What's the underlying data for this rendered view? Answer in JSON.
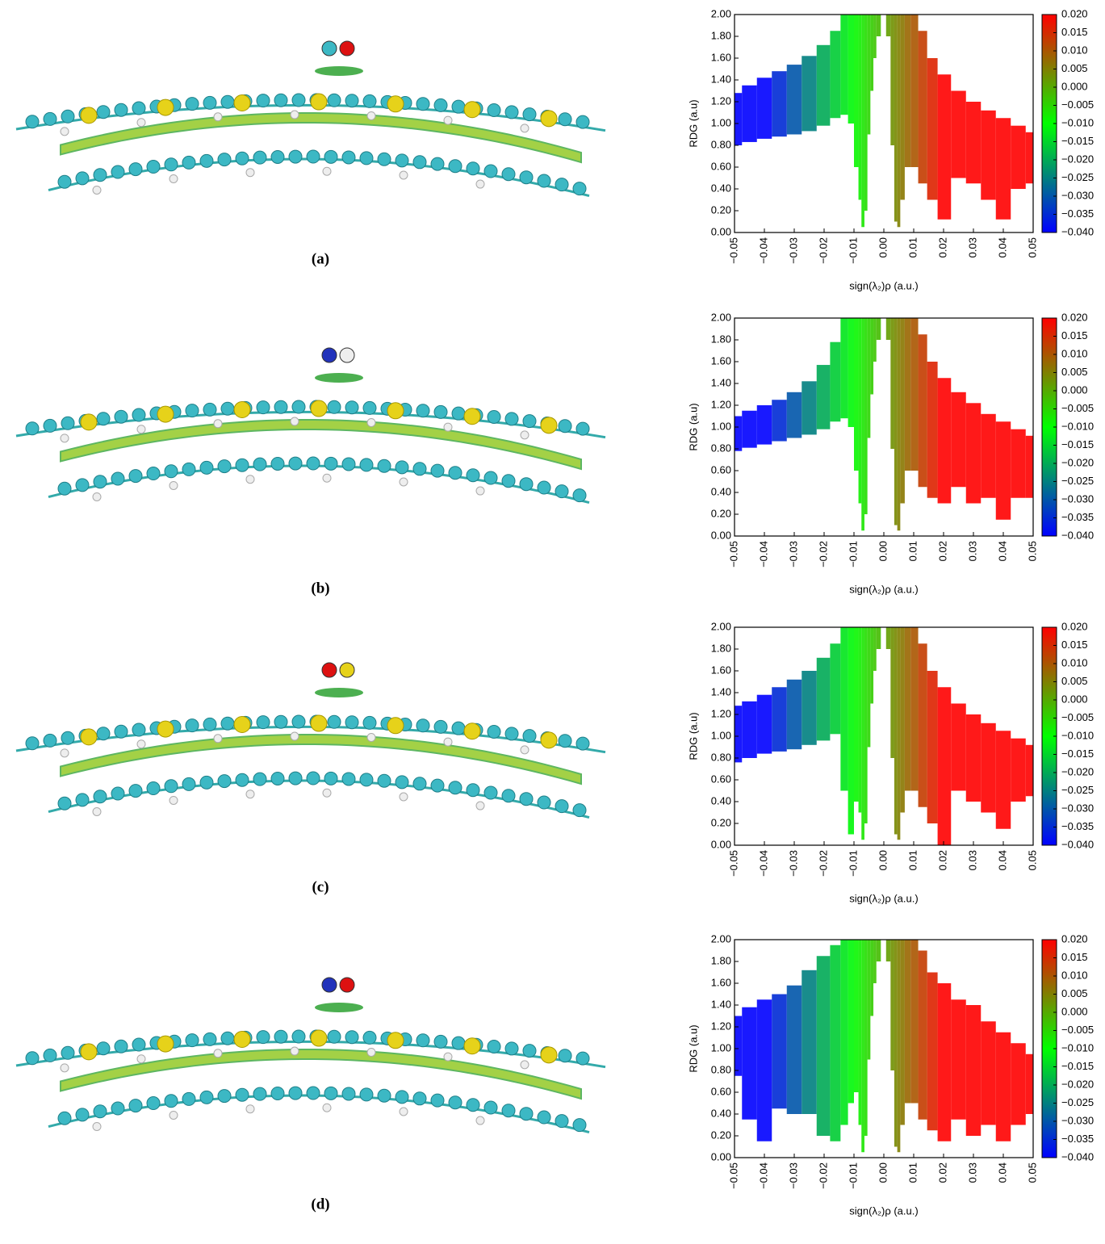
{
  "chart_data": [
    {
      "type": "scatter",
      "caption": "(a)",
      "xlabel": "sign(λ₂)ρ (a.u.)",
      "ylabel": "RDG (a.u)",
      "xlim": [
        -0.05,
        0.05
      ],
      "ylim": [
        0,
        2
      ],
      "xticks": [
        {
          "value": -0.05,
          "label": "−0.05"
        },
        {
          "value": -0.04,
          "label": "−0.04"
        },
        {
          "value": -0.03,
          "label": "−0.03"
        },
        {
          "value": -0.02,
          "label": "−0.02"
        },
        {
          "value": -0.01,
          "label": "−0.01"
        },
        {
          "value": 0,
          "label": "0.00"
        },
        0.01,
        0.02,
        0.03,
        0.04,
        0.05
      ],
      "yticks": [
        {
          "value": 0,
          "label": "0.00"
        },
        {
          "value": 0.2,
          "label": "0.20"
        },
        {
          "value": 0.4,
          "label": "0.40"
        },
        {
          "value": 0.6,
          "label": "0.60"
        },
        {
          "value": 0.8,
          "label": "0.80"
        },
        {
          "value": 1,
          "label": "1.00"
        },
        {
          "value": 1.2,
          "label": "1.20"
        },
        {
          "value": 1.4,
          "label": "1.40"
        },
        {
          "value": 1.6,
          "label": "1.60"
        },
        {
          "value": 1.8,
          "label": "1.80"
        },
        {
          "value": 2,
          "label": "2.00"
        }
      ],
      "colorbar": {
        "lim": [
          -0.04,
          0.02
        ],
        "colors": [
          "#0000ff",
          "#00ff00",
          "#ff0000"
        ],
        "ticks": [
          {
            "value": 0.02,
            "label": "0.020"
          },
          0.015,
          {
            "value": 0.01,
            "label": "0.010"
          },
          0.005,
          {
            "value": 0,
            "label": "0.000"
          },
          {
            "value": -0.005,
            "label": "−0.005"
          },
          {
            "value": -0.01,
            "label": "−0.010"
          },
          {
            "value": -0.015,
            "label": "−0.015"
          },
          {
            "value": -0.02,
            "label": "−0.020"
          },
          {
            "value": -0.025,
            "label": "−0.025"
          },
          {
            "value": -0.03,
            "label": "−0.030"
          },
          {
            "value": -0.035,
            "label": "−0.035"
          },
          {
            "value": -0.04,
            "label": "−0.040"
          }
        ]
      },
      "x": [
        -0.05,
        -0.045,
        -0.04,
        -0.035,
        -0.03,
        -0.025,
        -0.02,
        -0.016,
        -0.013,
        -0.011,
        -0.009,
        -0.008,
        -0.007,
        -0.006,
        -0.005,
        -0.004,
        -0.003,
        -0.002,
        0,
        0.0015,
        0.003,
        0.004,
        0.005,
        0.006,
        0.008,
        0.01,
        0.013,
        0.016,
        0.02,
        0.025,
        0.03,
        0.035,
        0.04,
        0.045,
        0.05
      ],
      "y_max": [
        1.28,
        1.35,
        1.42,
        1.48,
        1.54,
        1.62,
        1.72,
        1.85,
        2,
        2,
        2,
        2,
        2,
        2,
        2,
        2,
        2,
        2,
        null,
        2,
        2,
        2,
        2,
        2,
        2,
        2,
        1.85,
        1.6,
        1.45,
        1.3,
        1.2,
        1.12,
        1.05,
        0.98,
        0.92
      ],
      "y_min": [
        0.8,
        0.83,
        0.86,
        0.88,
        0.9,
        0.93,
        0.98,
        1.05,
        1.08,
        1.0,
        0.6,
        0.3,
        0.05,
        0.2,
        0.9,
        1.3,
        1.6,
        1.8,
        null,
        1.8,
        0.8,
        0.1,
        0.05,
        0.3,
        0.6,
        0.6,
        0.45,
        0.3,
        0.12,
        0.5,
        0.45,
        0.3,
        0.12,
        0.4,
        0.45
      ]
    },
    {
      "type": "scatter",
      "caption": "(b)",
      "xlabel": "sign(λ₂)ρ (a.u.)",
      "ylabel": "RDG (a.u)",
      "xlim": [
        -0.05,
        0.05
      ],
      "ylim": [
        0,
        2
      ],
      "xticks": [
        {
          "value": -0.05,
          "label": "−0.05"
        },
        {
          "value": -0.04,
          "label": "−0.04"
        },
        {
          "value": -0.03,
          "label": "−0.03"
        },
        {
          "value": -0.02,
          "label": "−0.02"
        },
        {
          "value": -0.01,
          "label": "−0.01"
        },
        {
          "value": 0,
          "label": "0.00"
        },
        0.01,
        0.02,
        0.03,
        0.04,
        0.05
      ],
      "yticks": [
        {
          "value": 0,
          "label": "0.00"
        },
        {
          "value": 0.2,
          "label": "0.20"
        },
        {
          "value": 0.4,
          "label": "0.40"
        },
        {
          "value": 0.6,
          "label": "0.60"
        },
        {
          "value": 0.8,
          "label": "0.80"
        },
        {
          "value": 1,
          "label": "1.00"
        },
        {
          "value": 1.2,
          "label": "1.20"
        },
        {
          "value": 1.4,
          "label": "1.40"
        },
        {
          "value": 1.6,
          "label": "1.60"
        },
        {
          "value": 1.8,
          "label": "1.80"
        },
        {
          "value": 2,
          "label": "2.00"
        }
      ],
      "colorbar": {
        "lim": [
          -0.04,
          0.02
        ],
        "colors": [
          "#0000ff",
          "#00ff00",
          "#ff0000"
        ],
        "ticks": [
          {
            "value": 0.02,
            "label": "0.020"
          },
          0.015,
          {
            "value": 0.01,
            "label": "0.010"
          },
          0.005,
          {
            "value": 0,
            "label": "0.000"
          },
          {
            "value": -0.005,
            "label": "−0.005"
          },
          {
            "value": -0.01,
            "label": "−0.010"
          },
          {
            "value": -0.015,
            "label": "−0.015"
          },
          {
            "value": -0.02,
            "label": "−0.020"
          },
          {
            "value": -0.025,
            "label": "−0.025"
          },
          {
            "value": -0.03,
            "label": "−0.030"
          },
          {
            "value": -0.035,
            "label": "−0.035"
          },
          {
            "value": -0.04,
            "label": "−0.040"
          }
        ]
      },
      "x": [
        -0.05,
        -0.045,
        -0.04,
        -0.035,
        -0.03,
        -0.025,
        -0.02,
        -0.016,
        -0.013,
        -0.011,
        -0.009,
        -0.008,
        -0.007,
        -0.006,
        -0.005,
        -0.004,
        -0.003,
        -0.002,
        0,
        0.0015,
        0.003,
        0.004,
        0.005,
        0.006,
        0.008,
        0.01,
        0.013,
        0.016,
        0.02,
        0.025,
        0.03,
        0.035,
        0.04,
        0.045,
        0.05
      ],
      "y_max": [
        1.1,
        1.15,
        1.2,
        1.25,
        1.32,
        1.42,
        1.57,
        1.78,
        2,
        2,
        2,
        2,
        2,
        2,
        2,
        2,
        2,
        2,
        null,
        2,
        2,
        2,
        2,
        2,
        2,
        2,
        1.85,
        1.6,
        1.45,
        1.32,
        1.22,
        1.12,
        1.05,
        0.98,
        0.92
      ],
      "y_min": [
        0.78,
        0.81,
        0.84,
        0.87,
        0.9,
        0.93,
        0.98,
        1.05,
        1.08,
        1.0,
        0.6,
        0.3,
        0.05,
        0.2,
        0.9,
        1.3,
        1.6,
        1.8,
        null,
        1.8,
        0.8,
        0.1,
        0.05,
        0.3,
        0.6,
        0.6,
        0.45,
        0.35,
        0.3,
        0.45,
        0.3,
        0.35,
        0.15,
        0.35,
        0.35
      ]
    },
    {
      "type": "scatter",
      "caption": "(c)",
      "xlabel": "sign(λ₂)ρ (a.u.)",
      "ylabel": "RDG (a.u)",
      "xlim": [
        -0.05,
        0.05
      ],
      "ylim": [
        0,
        2
      ],
      "xticks": [
        {
          "value": -0.05,
          "label": "−0.05"
        },
        {
          "value": -0.04,
          "label": "−0.04"
        },
        {
          "value": -0.03,
          "label": "−0.03"
        },
        {
          "value": -0.02,
          "label": "−0.02"
        },
        {
          "value": -0.01,
          "label": "−0.01"
        },
        {
          "value": 0,
          "label": "0.00"
        },
        0.01,
        0.02,
        0.03,
        0.04,
        0.05
      ],
      "yticks": [
        {
          "value": 0,
          "label": "0.00"
        },
        {
          "value": 0.2,
          "label": "0.20"
        },
        {
          "value": 0.4,
          "label": "0.40"
        },
        {
          "value": 0.6,
          "label": "0.60"
        },
        {
          "value": 0.8,
          "label": "0.80"
        },
        {
          "value": 1,
          "label": "1.00"
        },
        {
          "value": 1.2,
          "label": "1.20"
        },
        {
          "value": 1.4,
          "label": "1.40"
        },
        {
          "value": 1.6,
          "label": "1.60"
        },
        {
          "value": 1.8,
          "label": "1.80"
        },
        {
          "value": 2,
          "label": "2.00"
        }
      ],
      "colorbar": {
        "lim": [
          -0.04,
          0.02
        ],
        "colors": [
          "#0000ff",
          "#00ff00",
          "#ff0000"
        ],
        "ticks": [
          {
            "value": 0.02,
            "label": "0.020"
          },
          0.015,
          {
            "value": 0.01,
            "label": "0.010"
          },
          0.005,
          {
            "value": 0,
            "label": "0.000"
          },
          {
            "value": -0.005,
            "label": "−0.005"
          },
          {
            "value": -0.01,
            "label": "−0.010"
          },
          {
            "value": -0.015,
            "label": "−0.015"
          },
          {
            "value": -0.02,
            "label": "−0.020"
          },
          {
            "value": -0.025,
            "label": "−0.025"
          },
          {
            "value": -0.03,
            "label": "−0.030"
          },
          {
            "value": -0.035,
            "label": "−0.035"
          },
          {
            "value": -0.04,
            "label": "−0.040"
          }
        ]
      },
      "x": [
        -0.05,
        -0.045,
        -0.04,
        -0.035,
        -0.03,
        -0.025,
        -0.02,
        -0.016,
        -0.013,
        -0.011,
        -0.009,
        -0.008,
        -0.007,
        -0.006,
        -0.005,
        -0.004,
        -0.003,
        -0.002,
        0,
        0.0015,
        0.003,
        0.004,
        0.005,
        0.006,
        0.008,
        0.01,
        0.013,
        0.016,
        0.02,
        0.025,
        0.03,
        0.035,
        0.04,
        0.045,
        0.05
      ],
      "y_max": [
        1.28,
        1.32,
        1.38,
        1.45,
        1.52,
        1.6,
        1.72,
        1.85,
        2,
        2,
        2,
        2,
        2,
        2,
        2,
        2,
        2,
        2,
        null,
        2,
        2,
        2,
        2,
        2,
        2,
        2,
        1.85,
        1.6,
        1.45,
        1.3,
        1.2,
        1.12,
        1.05,
        0.98,
        0.92
      ],
      "y_min": [
        0.76,
        0.8,
        0.84,
        0.86,
        0.88,
        0.92,
        0.96,
        1.02,
        0.5,
        0.1,
        0.4,
        0.3,
        0.05,
        0.2,
        0.9,
        1.3,
        1.6,
        1.8,
        null,
        1.8,
        0.8,
        0.1,
        0.05,
        0.3,
        0.5,
        0.5,
        0.35,
        0.2,
        0.0,
        0.5,
        0.4,
        0.3,
        0.15,
        0.4,
        0.45
      ]
    },
    {
      "type": "scatter",
      "caption": "(d)",
      "xlabel": "sign(λ₂)ρ (a.u.)",
      "ylabel": "RDG (a.u)",
      "xlim": [
        -0.05,
        0.05
      ],
      "ylim": [
        0,
        2
      ],
      "xticks": [
        {
          "value": -0.05,
          "label": "−0.05"
        },
        {
          "value": -0.04,
          "label": "−0.04"
        },
        {
          "value": -0.03,
          "label": "−0.03"
        },
        {
          "value": -0.02,
          "label": "−0.02"
        },
        {
          "value": -0.01,
          "label": "−0.01"
        },
        {
          "value": 0,
          "label": "0.00"
        },
        0.01,
        0.02,
        0.03,
        0.04,
        0.05
      ],
      "yticks": [
        {
          "value": 0,
          "label": "0.00"
        },
        {
          "value": 0.2,
          "label": "0.20"
        },
        {
          "value": 0.4,
          "label": "0.40"
        },
        {
          "value": 0.6,
          "label": "0.60"
        },
        {
          "value": 0.8,
          "label": "0.80"
        },
        {
          "value": 1,
          "label": "1.00"
        },
        {
          "value": 1.2,
          "label": "1.20"
        },
        {
          "value": 1.4,
          "label": "1.40"
        },
        {
          "value": 1.6,
          "label": "1.60"
        },
        {
          "value": 1.8,
          "label": "1.80"
        },
        {
          "value": 2,
          "label": "2.00"
        }
      ],
      "colorbar": {
        "lim": [
          -0.04,
          0.02
        ],
        "colors": [
          "#0000ff",
          "#00ff00",
          "#ff0000"
        ],
        "ticks": [
          {
            "value": 0.02,
            "label": "0.020"
          },
          0.015,
          {
            "value": 0.01,
            "label": "0.010"
          },
          0.005,
          {
            "value": 0,
            "label": "0.000"
          },
          {
            "value": -0.005,
            "label": "−0.005"
          },
          {
            "value": -0.01,
            "label": "−0.010"
          },
          {
            "value": -0.015,
            "label": "−0.015"
          },
          {
            "value": -0.02,
            "label": "−0.020"
          },
          {
            "value": -0.025,
            "label": "−0.025"
          },
          {
            "value": -0.03,
            "label": "−0.030"
          },
          {
            "value": -0.035,
            "label": "−0.035"
          },
          {
            "value": -0.04,
            "label": "−0.040"
          }
        ]
      },
      "x": [
        -0.05,
        -0.045,
        -0.04,
        -0.035,
        -0.03,
        -0.025,
        -0.02,
        -0.016,
        -0.013,
        -0.011,
        -0.009,
        -0.008,
        -0.007,
        -0.006,
        -0.005,
        -0.004,
        -0.003,
        -0.002,
        0,
        0.0015,
        0.003,
        0.004,
        0.005,
        0.006,
        0.008,
        0.01,
        0.013,
        0.016,
        0.02,
        0.025,
        0.03,
        0.035,
        0.04,
        0.045,
        0.05
      ],
      "y_max": [
        1.3,
        1.38,
        1.45,
        1.5,
        1.58,
        1.72,
        1.85,
        1.95,
        2,
        2,
        2,
        2,
        2,
        2,
        2,
        2,
        2,
        2,
        null,
        2,
        2,
        2,
        2,
        2,
        2,
        2,
        1.9,
        1.7,
        1.6,
        1.45,
        1.4,
        1.25,
        1.15,
        1.05,
        0.95
      ],
      "y_min": [
        0.75,
        0.35,
        0.15,
        0.45,
        0.4,
        0.4,
        0.2,
        0.15,
        0.3,
        0.5,
        0.6,
        0.3,
        0.05,
        0.2,
        0.9,
        1.3,
        1.6,
        1.8,
        null,
        1.8,
        0.8,
        0.1,
        0.05,
        0.3,
        0.5,
        0.5,
        0.35,
        0.25,
        0.15,
        0.35,
        0.2,
        0.3,
        0.15,
        0.3,
        0.4
      ]
    }
  ]
}
